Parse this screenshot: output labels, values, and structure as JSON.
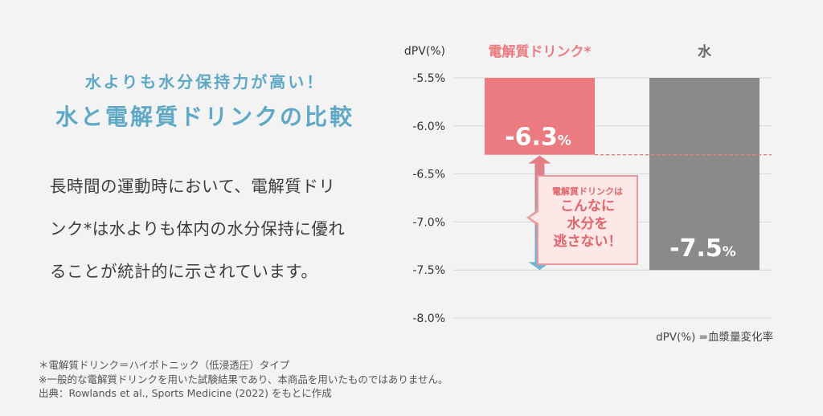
{
  "heading": {
    "subtitle": "水よりも水分保持力が高い！",
    "title": "水と電解質ドリンクの比較"
  },
  "body_lines": [
    "長時間の運動時において、電解質ドリ",
    "ンク*は水よりも体内の水分保持に優れ",
    "ることが統計的に示されています。"
  ],
  "footnotes": [
    "＊電解質ドリンク＝ハイポトニック（低浸透圧）タイプ",
    "※一般的な電解質ドリンクを用いた試験結果であり、本商品を用いたものではありません。",
    "出典：Rowlands et al., Sports Medicine (2022) をもとに作成"
  ],
  "callout": {
    "small": "電解質ドリンクは",
    "big": [
      "こんなに",
      "水分を",
      "逃さない！"
    ]
  },
  "colors": {
    "electrolyte": "#eb7b80",
    "water": "#8a8a8a",
    "accent_blue": "#5fa8c6",
    "arrow_bottom": "#6fb6d8"
  },
  "chart_data": {
    "type": "bar",
    "ylabel": "dPV(%)",
    "ylim": [
      -8.0,
      -5.5
    ],
    "yticks": [
      "-5.5%",
      "-6.0%",
      "-6.5%",
      "-7.0%",
      "-7.5%",
      "-8.0%"
    ],
    "ytick_values": [
      -5.5,
      -6.0,
      -6.5,
      -7.0,
      -7.5,
      -8.0
    ],
    "categories": [
      "電解質ドリンク*",
      "水"
    ],
    "values": [
      -6.3,
      -7.5
    ],
    "value_labels": [
      {
        "num": "-6.3",
        "unit": "%"
      },
      {
        "num": "-7.5",
        "unit": "%"
      }
    ],
    "grid": true,
    "note": "dPV(%) =血漿量変化率"
  }
}
